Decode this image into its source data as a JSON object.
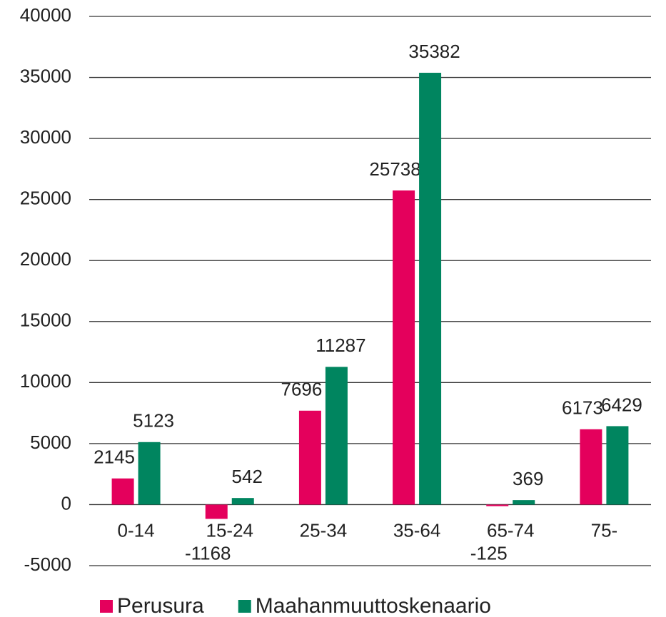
{
  "chart_data": {
    "type": "bar",
    "categories": [
      "0-14",
      "15-24",
      "25-34",
      "35-64",
      "65-74",
      "75-"
    ],
    "series": [
      {
        "name": "Perusura",
        "color": "#e4005c",
        "values": [
          2145,
          -1168,
          7696,
          25738,
          -125,
          6173
        ]
      },
      {
        "name": "Maahanmuuttoskenaario",
        "color": "#00855f",
        "values": [
          5123,
          542,
          11287,
          35382,
          369,
          6429
        ]
      }
    ],
    "ylim": [
      -5000,
      40000
    ],
    "yticks": [
      -5000,
      0,
      5000,
      10000,
      15000,
      20000,
      25000,
      30000,
      35000,
      40000
    ],
    "grid": true,
    "legend": "bottom"
  }
}
